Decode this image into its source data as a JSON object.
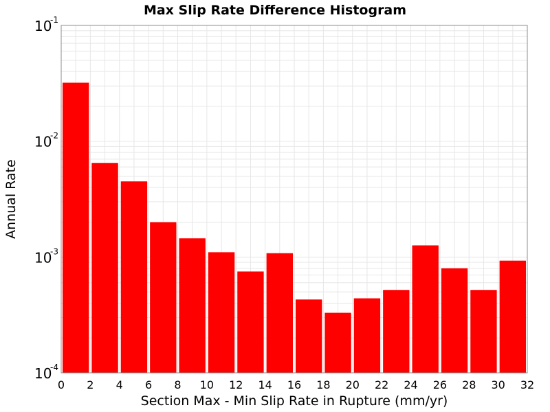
{
  "chart_data": {
    "type": "bar",
    "title": "Max Slip Rate Difference Histogram",
    "xlabel": "Section Max - Min Slip Rate in Rupture (mm/yr)",
    "ylabel": "Annual Rate",
    "xlim": [
      0,
      32
    ],
    "ylim": [
      0.0001,
      0.1
    ],
    "yscale": "log",
    "bin_width": 2,
    "x_ticks": [
      "0",
      "2",
      "4",
      "6",
      "8",
      "10",
      "12",
      "14",
      "16",
      "18",
      "20",
      "22",
      "24",
      "26",
      "28",
      "30",
      "32"
    ],
    "y_ticks": [
      {
        "base": "10",
        "exp": "-4"
      },
      {
        "base": "10",
        "exp": "-3"
      },
      {
        "base": "10",
        "exp": "-2"
      },
      {
        "base": "10",
        "exp": "-1"
      }
    ],
    "bins": [
      {
        "x_start": 0,
        "x_end": 2,
        "value": 0.032
      },
      {
        "x_start": 2,
        "x_end": 4,
        "value": 0.0065
      },
      {
        "x_start": 4,
        "x_end": 6,
        "value": 0.0045
      },
      {
        "x_start": 6,
        "x_end": 8,
        "value": 0.002
      },
      {
        "x_start": 8,
        "x_end": 10,
        "value": 0.00145
      },
      {
        "x_start": 10,
        "x_end": 12,
        "value": 0.0011
      },
      {
        "x_start": 12,
        "x_end": 14,
        "value": 0.00075
      },
      {
        "x_start": 14,
        "x_end": 16,
        "value": 0.00108
      },
      {
        "x_start": 16,
        "x_end": 18,
        "value": 0.00043
      },
      {
        "x_start": 18,
        "x_end": 20,
        "value": 0.00033
      },
      {
        "x_start": 20,
        "x_end": 22,
        "value": 0.00044
      },
      {
        "x_start": 22,
        "x_end": 24,
        "value": 0.00052
      },
      {
        "x_start": 24,
        "x_end": 26,
        "value": 0.00126
      },
      {
        "x_start": 26,
        "x_end": 28,
        "value": 0.0008
      },
      {
        "x_start": 28,
        "x_end": 30,
        "value": 0.00052
      },
      {
        "x_start": 30,
        "x_end": 32,
        "value": 0.00093
      }
    ],
    "bar_color": "#ff0000",
    "grid": true,
    "grid_color": "#e6e6e6",
    "legend": "none"
  }
}
